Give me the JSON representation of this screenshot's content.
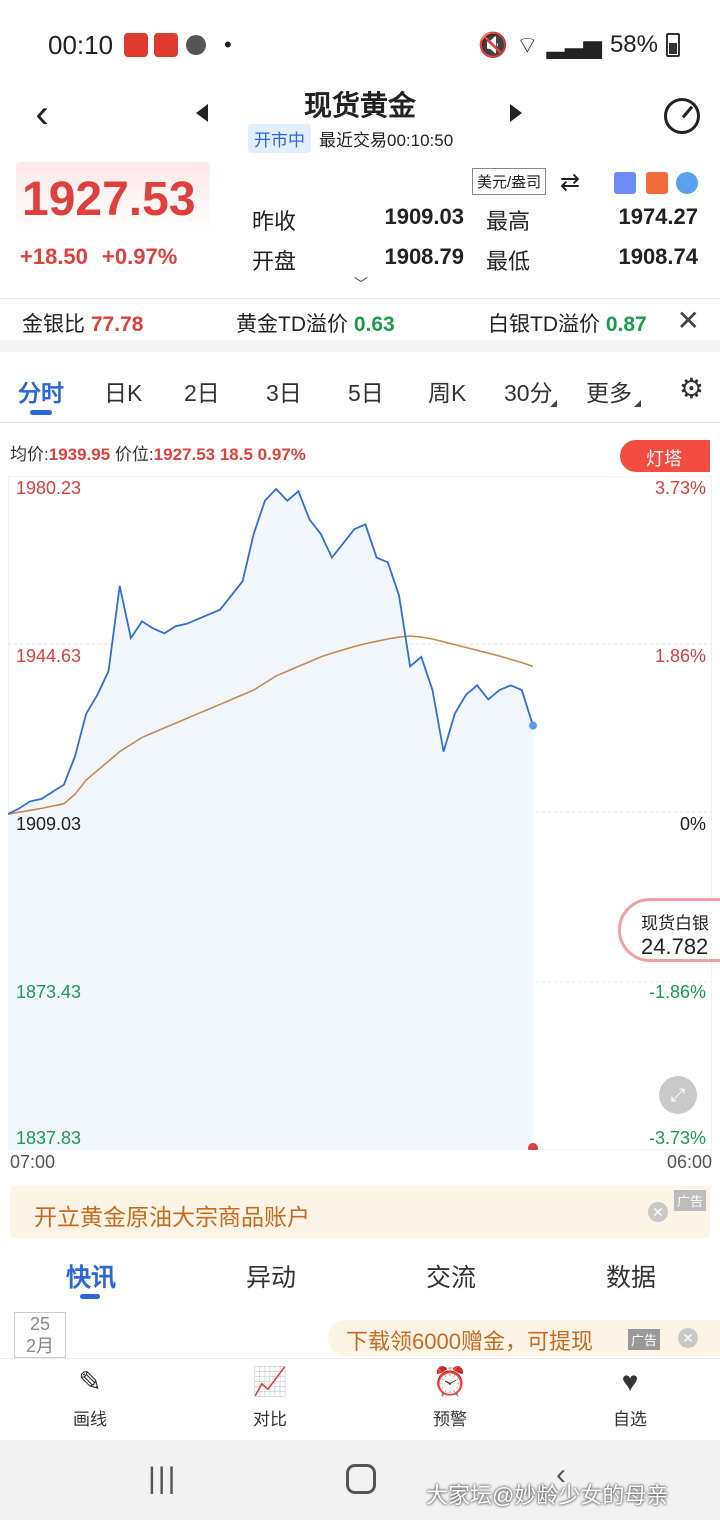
{
  "status": {
    "time": "00:10",
    "battery": "58%"
  },
  "header": {
    "title": "现货黄金",
    "state": "开市中",
    "last_trade": "最近交易00:10:50"
  },
  "quote": {
    "price": "1927.53",
    "change": "+18.50",
    "change_pct": "+0.97%",
    "unit": "美元/盎司",
    "prev_close_label": "昨收",
    "prev_close": "1909.03",
    "open_label": "开盘",
    "open": "1908.79",
    "high_label": "最高",
    "high": "1974.27",
    "low_label": "最低",
    "low": "1908.74"
  },
  "ratio_row": {
    "gs_label": "金银比",
    "gs_value": "77.78",
    "td_gold_label": "黄金TD溢价",
    "td_gold_value": "0.63",
    "td_silver_label": "白银TD溢价",
    "td_silver_value": "0.87"
  },
  "tabs": [
    "分时",
    "日K",
    "2日",
    "3日",
    "5日",
    "周K",
    "30分",
    "更多"
  ],
  "info_line": {
    "avg_label": "均价:",
    "avg": "1939.95",
    "price_label": "价位:",
    "price": "1927.53",
    "chg": "18.5",
    "pct": "0.97%",
    "tower": "灯塔"
  },
  "chart_data": {
    "type": "line",
    "y_left_ticks": [
      "1980.23",
      "1944.63",
      "1909.03",
      "1873.43",
      "1837.83"
    ],
    "y_right_ticks": [
      "3.73%",
      "1.86%",
      "0%",
      "-1.86%",
      "-3.73%"
    ],
    "x_ticks": [
      "07:00",
      "06:00"
    ],
    "ylim": [
      1837.83,
      1980.23
    ],
    "x_points": 48,
    "series": [
      {
        "values": [
          1908.8,
          1910.0,
          1911.5,
          1912.0,
          1913.5,
          1915.0,
          1921.0,
          1930.0,
          1934.0,
          1939.0,
          1957.0,
          1946.0,
          1949.5,
          1948.0,
          1947.0,
          1948.5,
          1949.0,
          1950.0,
          1951.0,
          1952.0,
          1955.0,
          1958.0,
          1968.0,
          1975.0,
          1977.5,
          1975.0,
          1977.0,
          1971.0,
          1968.0,
          1963.0,
          1966.0,
          1969.0,
          1970.0,
          1963.0,
          1962.0,
          1955.0,
          1940.0,
          1942.0,
          1935.0,
          1922.0,
          1930.0,
          1934.0,
          1936.0,
          1933.0,
          1935.0,
          1936.0,
          1935.0,
          1927.5
        ]
      },
      {
        "values": [
          1908.8,
          1909.2,
          1909.6,
          1910.0,
          1910.5,
          1911.0,
          1913.0,
          1916.0,
          1918.0,
          1920.0,
          1922.0,
          1923.5,
          1925.0,
          1926.0,
          1927.0,
          1928.0,
          1929.0,
          1930.0,
          1931.0,
          1932.0,
          1933.0,
          1934.0,
          1935.0,
          1936.5,
          1938.0,
          1939.0,
          1940.0,
          1941.0,
          1942.0,
          1942.8,
          1943.5,
          1944.2,
          1944.8,
          1945.3,
          1945.8,
          1946.2,
          1946.4,
          1946.2,
          1945.8,
          1945.2,
          1944.6,
          1944.0,
          1943.4,
          1942.8,
          1942.2,
          1941.5,
          1940.8,
          1940.0
        ]
      }
    ]
  },
  "silver_badge": {
    "label": "现货白银",
    "value": "24.782"
  },
  "ad1": {
    "text": "开立黄金原油大宗商品账户",
    "tag": "广告"
  },
  "news_tabs": [
    "快讯",
    "异动",
    "交流",
    "数据"
  ],
  "date_box": {
    "day": "25",
    "month": "2月"
  },
  "ad2": {
    "text": "下载领6000赠金，可提现",
    "tag": "广告"
  },
  "toolbar": [
    "画线",
    "对比",
    "预警",
    "自选"
  ],
  "watermark": "大家坛@妙龄少女的母亲",
  "colors": {
    "up": "#e0403c",
    "down": "#1a9c4e",
    "accent": "#2b67d6",
    "line": "#2f6fd8",
    "avg": "#c98a4b"
  }
}
